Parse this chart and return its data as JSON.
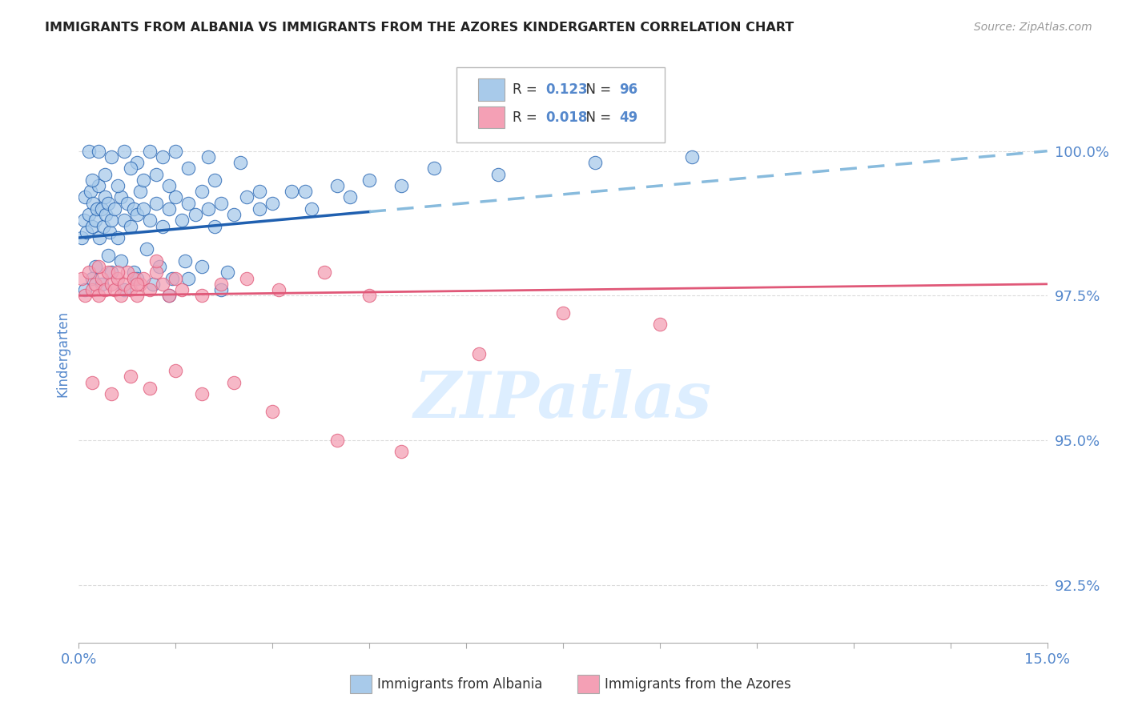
{
  "title": "IMMIGRANTS FROM ALBANIA VS IMMIGRANTS FROM THE AZORES KINDERGARTEN CORRELATION CHART",
  "source_text": "Source: ZipAtlas.com",
  "ylabel": "Kindergarten",
  "legend_label_1": "Immigrants from Albania",
  "legend_label_2": "Immigrants from the Azores",
  "R1": 0.123,
  "N1": 96,
  "R2": 0.018,
  "N2": 49,
  "xlim": [
    0.0,
    15.0
  ],
  "ylim": [
    91.5,
    101.5
  ],
  "yticks": [
    92.5,
    95.0,
    97.5,
    100.0
  ],
  "ytick_labels": [
    "92.5%",
    "95.0%",
    "97.5%",
    "100.0%"
  ],
  "xticks": [
    0.0,
    1.5,
    3.0,
    4.5,
    6.0,
    7.5,
    9.0,
    10.5,
    12.0,
    13.5,
    15.0
  ],
  "xtick_labels": [
    "0.0%",
    "",
    "",
    "",
    "",
    "",
    "",
    "",
    "",
    "",
    "15.0%"
  ],
  "color_albania": "#A8CAEA",
  "color_azores": "#F4A0B5",
  "trendline_color_albania": "#2060B0",
  "trendline_color_azores": "#E05878",
  "dashed_line_color": "#88BBDD",
  "title_color": "#222222",
  "tick_label_color": "#5588CC",
  "watermark_color": "#DDEEFF",
  "background_color": "#FFFFFF",
  "albania_x": [
    0.05,
    0.08,
    0.1,
    0.12,
    0.15,
    0.18,
    0.2,
    0.22,
    0.25,
    0.28,
    0.3,
    0.32,
    0.35,
    0.38,
    0.4,
    0.42,
    0.45,
    0.48,
    0.5,
    0.55,
    0.6,
    0.65,
    0.7,
    0.75,
    0.8,
    0.85,
    0.9,
    0.95,
    1.0,
    1.1,
    1.2,
    1.3,
    1.4,
    1.5,
    1.6,
    1.7,
    1.8,
    1.9,
    2.0,
    2.1,
    2.2,
    2.4,
    2.6,
    2.8,
    3.0,
    3.3,
    3.6,
    4.0,
    4.5,
    5.5,
    0.15,
    0.3,
    0.5,
    0.7,
    0.9,
    1.1,
    1.3,
    1.5,
    2.0,
    2.5,
    0.2,
    0.4,
    0.6,
    0.8,
    1.0,
    1.2,
    1.4,
    1.7,
    2.1,
    2.8,
    0.25,
    0.45,
    0.65,
    0.85,
    1.05,
    1.25,
    1.45,
    1.65,
    1.9,
    2.3,
    3.5,
    4.2,
    5.0,
    6.5,
    8.0,
    9.5,
    0.1,
    0.2,
    0.35,
    0.5,
    0.7,
    0.9,
    1.15,
    1.4,
    1.7,
    2.2
  ],
  "albania_y": [
    98.5,
    98.8,
    99.2,
    98.6,
    98.9,
    99.3,
    98.7,
    99.1,
    98.8,
    99.0,
    99.4,
    98.5,
    99.0,
    98.7,
    99.2,
    98.9,
    99.1,
    98.6,
    98.8,
    99.0,
    98.5,
    99.2,
    98.8,
    99.1,
    98.7,
    99.0,
    98.9,
    99.3,
    99.0,
    98.8,
    99.1,
    98.7,
    99.0,
    99.2,
    98.8,
    99.1,
    98.9,
    99.3,
    99.0,
    98.7,
    99.1,
    98.9,
    99.2,
    99.0,
    99.1,
    99.3,
    99.0,
    99.4,
    99.5,
    99.7,
    100.0,
    100.0,
    99.9,
    100.0,
    99.8,
    100.0,
    99.9,
    100.0,
    99.9,
    99.8,
    99.5,
    99.6,
    99.4,
    99.7,
    99.5,
    99.6,
    99.4,
    99.7,
    99.5,
    99.3,
    98.0,
    98.2,
    98.1,
    97.9,
    98.3,
    98.0,
    97.8,
    98.1,
    98.0,
    97.9,
    99.3,
    99.2,
    99.4,
    99.6,
    99.8,
    99.9,
    97.6,
    97.8,
    97.7,
    97.9,
    97.6,
    97.8,
    97.7,
    97.5,
    97.8,
    97.6
  ],
  "azores_x": [
    0.05,
    0.1,
    0.15,
    0.2,
    0.25,
    0.3,
    0.35,
    0.4,
    0.45,
    0.5,
    0.55,
    0.6,
    0.65,
    0.7,
    0.75,
    0.8,
    0.85,
    0.9,
    0.95,
    1.0,
    1.1,
    1.2,
    1.3,
    1.4,
    1.5,
    0.3,
    0.6,
    0.9,
    1.2,
    1.6,
    1.9,
    2.2,
    2.6,
    3.1,
    3.8,
    4.5,
    0.2,
    0.5,
    0.8,
    1.1,
    1.5,
    1.9,
    2.4,
    3.0,
    4.0,
    5.0,
    6.2,
    7.5,
    9.0
  ],
  "azores_y": [
    97.8,
    97.5,
    97.9,
    97.6,
    97.7,
    97.5,
    97.8,
    97.6,
    97.9,
    97.7,
    97.6,
    97.8,
    97.5,
    97.7,
    97.9,
    97.6,
    97.8,
    97.5,
    97.7,
    97.8,
    97.6,
    97.9,
    97.7,
    97.5,
    97.8,
    98.0,
    97.9,
    97.7,
    98.1,
    97.6,
    97.5,
    97.7,
    97.8,
    97.6,
    97.9,
    97.5,
    96.0,
    95.8,
    96.1,
    95.9,
    96.2,
    95.8,
    96.0,
    95.5,
    95.0,
    94.8,
    96.5,
    97.2,
    97.0
  ],
  "trendline_solid_end_x": 4.5
}
